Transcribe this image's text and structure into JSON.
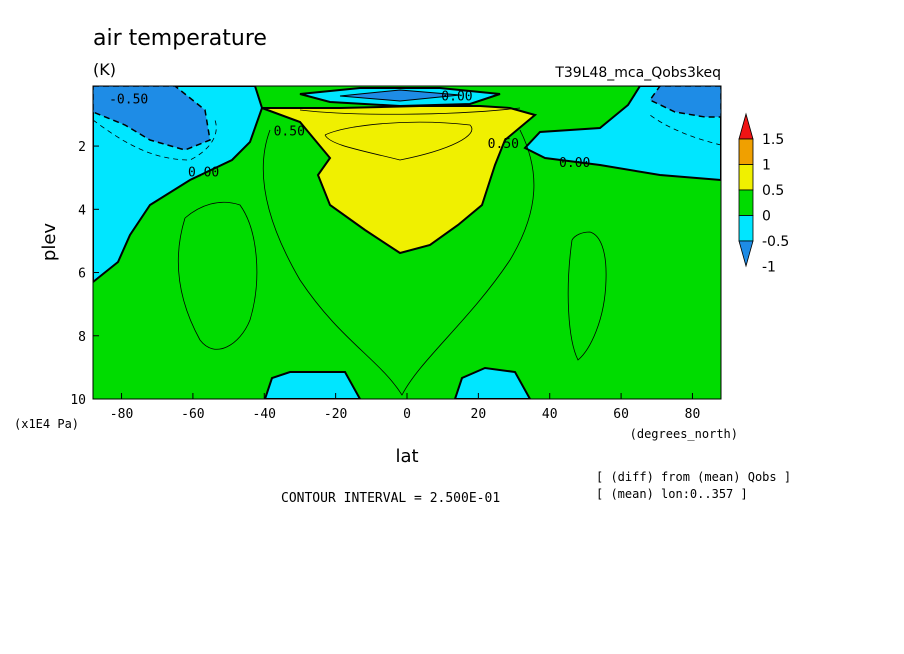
{
  "chart_data": {
    "type": "heatmap",
    "title": "air temperature",
    "units": "(K)",
    "run_label": "T39L48_mca_Qobs3keq",
    "xlabel": "lat",
    "x_units": "(degrees_north)",
    "ylabel": "plev",
    "y_units": "(x1E4 Pa)",
    "xlim": [
      -88,
      88
    ],
    "ylim": [
      10,
      0.1
    ],
    "x_ticks": [
      -80,
      -60,
      -40,
      -20,
      0,
      20,
      40,
      60,
      80
    ],
    "x_tick_labels": [
      "-80",
      "-60",
      "-40",
      "-20",
      "0",
      "20",
      "40",
      "60",
      "80"
    ],
    "y_ticks": [
      2,
      4,
      6,
      8,
      10
    ],
    "y_tick_labels": [
      "2",
      "4",
      "6",
      "8",
      "10"
    ],
    "contour_interval_text": "CONTOUR INTERVAL = 2.500E-01",
    "contour_labels": [
      {
        "text": "-0.50",
        "lat": -78,
        "plev": 0.5
      },
      {
        "text": "0.00",
        "lat": -57,
        "plev": 2.8
      },
      {
        "text": "0.50",
        "lat": -33,
        "plev": 1.5
      },
      {
        "text": "0.00",
        "lat": 14,
        "plev": 0.4
      },
      {
        "text": "0.50",
        "lat": 27,
        "plev": 1.9
      },
      {
        "text": "0.00",
        "lat": 47,
        "plev": 2.5
      }
    ],
    "colorbar": {
      "levels": [
        "-1",
        "-0.5",
        "0",
        "0.5",
        "1",
        "1.5"
      ],
      "colors": [
        "#1e8ce6",
        "#00e6ff",
        "#00dc00",
        "#f0f000",
        "#f0a000",
        "#f01414"
      ]
    },
    "notes": [
      "[ (diff) from (mean) Qobs ]",
      "[ (mean) lon:0..357 ]"
    ]
  }
}
